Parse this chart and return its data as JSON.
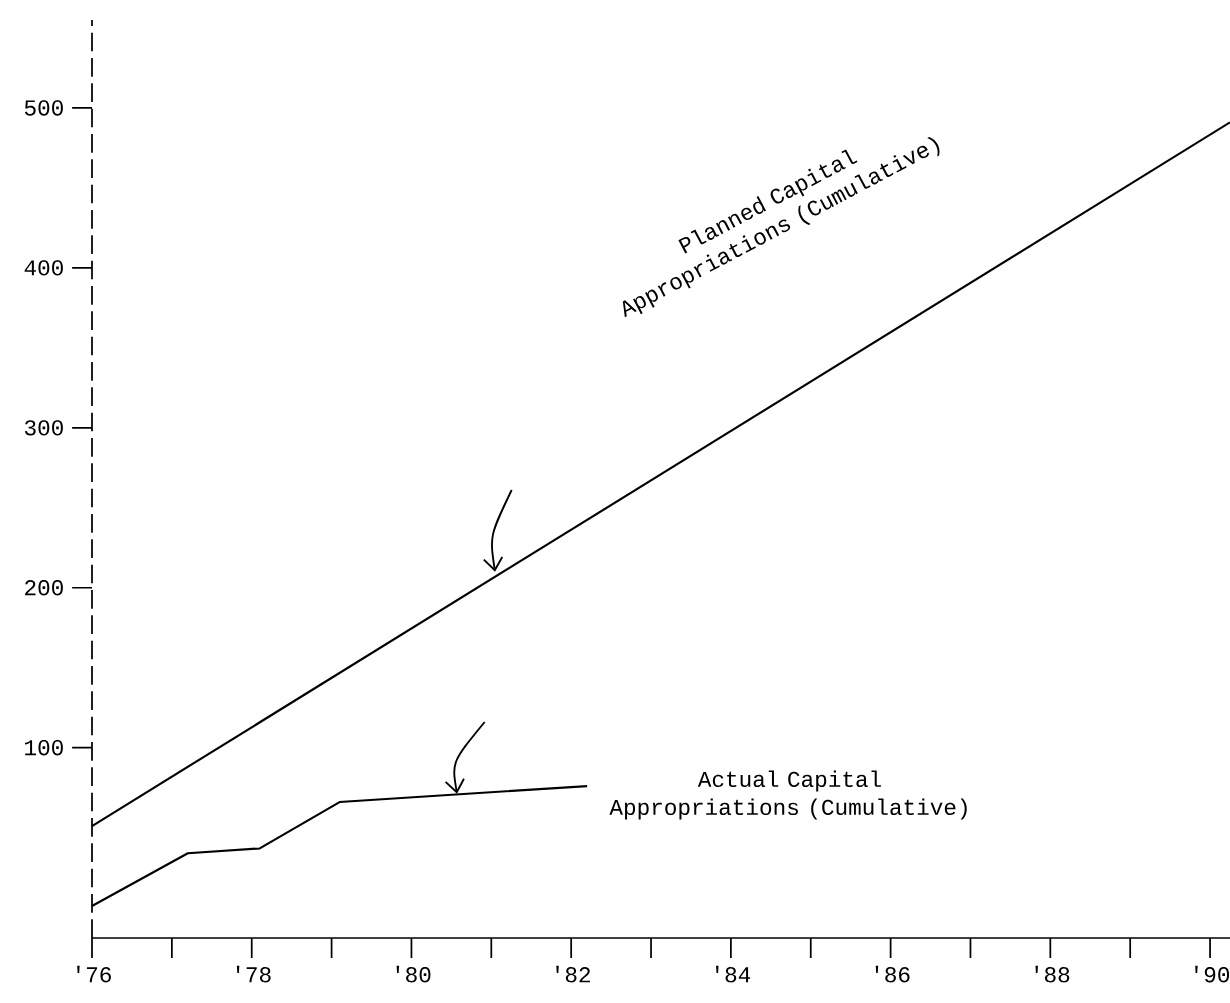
{
  "chart_data": {
    "type": "line",
    "xlim": [
      1976,
      1990.25
    ],
    "xticks": [
      {
        "value": 1976,
        "label": "'76"
      },
      {
        "value": 1978,
        "label": "'78"
      },
      {
        "value": 1980,
        "label": "'80"
      },
      {
        "value": 1982,
        "label": "'82"
      },
      {
        "value": 1984,
        "label": "'84"
      },
      {
        "value": 1986,
        "label": "'86"
      },
      {
        "value": 1988,
        "label": "'88"
      },
      {
        "value": 1990,
        "label": "'90"
      }
    ],
    "ylim": [
      -19,
      555
    ],
    "yticks": [
      100,
      200,
      300,
      400,
      500
    ],
    "series": [
      {
        "color": "#000000",
        "x": [
          1976,
          1990.25
        ],
        "values": [
          51,
          491
        ]
      },
      {
        "color": "#000000",
        "x": [
          1976,
          1977.2,
          1978.1,
          1979.1,
          1982.2
        ],
        "values": [
          1,
          34,
          37,
          66,
          76
        ]
      }
    ],
    "annotations": [
      "Planned Capital Appropriations (Cumulative)",
      "Actual Capital Appropriations (Cumulative)"
    ],
    "grid": false,
    "marker": "none",
    "line_style": "solid"
  }
}
